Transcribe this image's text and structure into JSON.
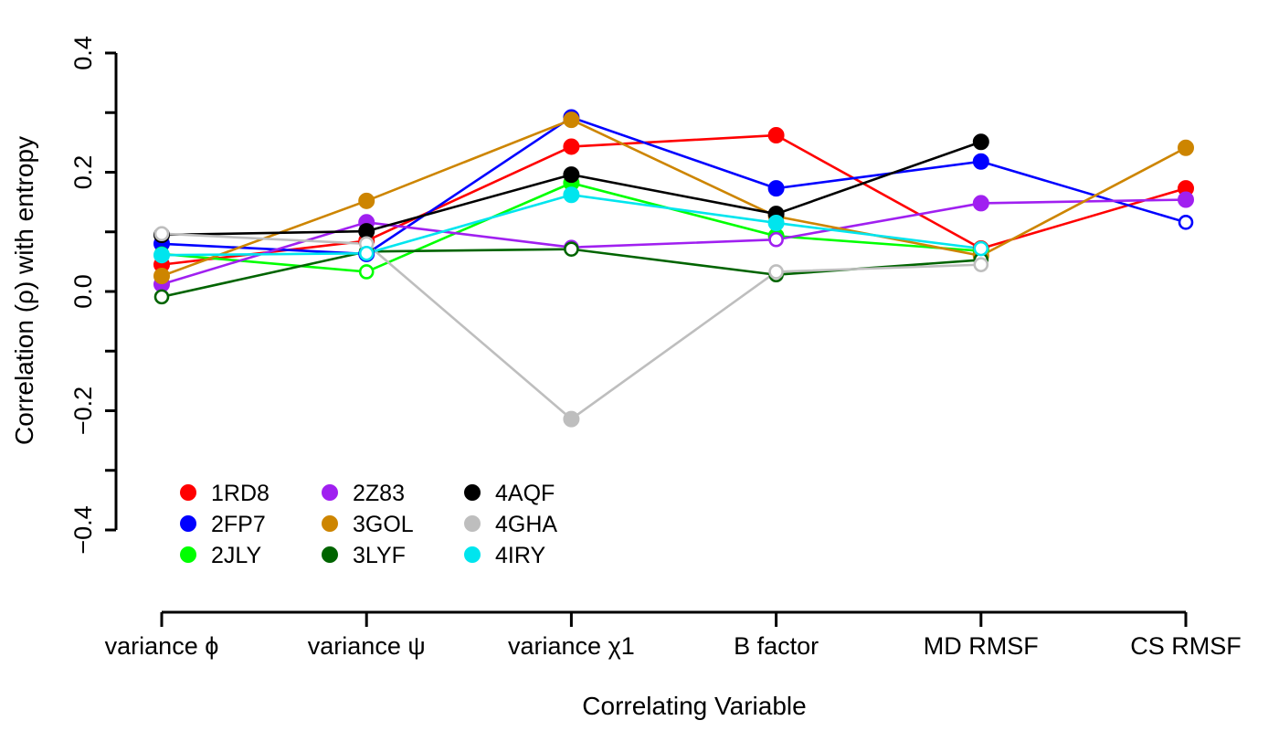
{
  "chart_data": {
    "type": "line",
    "xlabel": "Correlating Variable",
    "ylabel": "Correlation (ρ) with entropy",
    "categories": [
      "variance ϕ",
      "variance ψ",
      "variance χ1",
      "B factor",
      "MD RMSF",
      "CS RMSF"
    ],
    "ylim": [
      -0.4,
      0.4
    ],
    "yticks": [
      "−0.4",
      "−0.2",
      "0.0",
      "0.2",
      "0.4"
    ],
    "ytick_values": [
      -0.4,
      -0.2,
      0.0,
      0.2,
      0.4
    ],
    "legend_position": "bottom-left",
    "series": [
      {
        "name": "1RD8",
        "color": "#ff0000",
        "values": [
          0.045,
          0.085,
          0.243,
          0.262,
          0.072,
          0.173
        ],
        "filled": [
          true,
          true,
          true,
          true,
          true,
          true
        ]
      },
      {
        "name": "2FP7",
        "color": "#0000ff",
        "values": [
          0.08,
          0.063,
          0.292,
          0.173,
          0.218,
          0.116
        ],
        "filled": [
          true,
          true,
          true,
          true,
          true,
          false
        ]
      },
      {
        "name": "2JLY",
        "color": "#00ff00",
        "values": [
          0.063,
          0.033,
          0.182,
          0.093,
          0.068,
          null
        ],
        "filled": [
          false,
          false,
          true,
          true,
          true,
          true
        ]
      },
      {
        "name": "2Z83",
        "color": "#a020f0",
        "values": [
          0.012,
          0.116,
          0.074,
          0.087,
          0.148,
          0.154
        ],
        "filled": [
          true,
          true,
          false,
          false,
          true,
          true
        ]
      },
      {
        "name": "3GOL",
        "color": "#cd8500",
        "values": [
          0.026,
          0.152,
          0.288,
          0.126,
          0.06,
          0.241
        ],
        "filled": [
          true,
          true,
          true,
          true,
          true,
          true
        ]
      },
      {
        "name": "3LYF",
        "color": "#006400",
        "values": [
          -0.009,
          0.067,
          0.071,
          0.028,
          0.053,
          null
        ],
        "filled": [
          false,
          false,
          false,
          false,
          false,
          true
        ]
      },
      {
        "name": "4AQF",
        "color": "#000000",
        "values": [
          0.095,
          0.101,
          0.196,
          0.13,
          0.251,
          null
        ],
        "filled": [
          true,
          true,
          true,
          true,
          true,
          true
        ]
      },
      {
        "name": "4GHA",
        "color": "#bebebe",
        "values": [
          0.097,
          0.08,
          -0.214,
          0.033,
          0.045,
          null
        ],
        "filled": [
          false,
          false,
          true,
          false,
          false,
          true
        ]
      },
      {
        "name": "4IRY",
        "color": "#00e5ee",
        "values": [
          0.061,
          0.064,
          0.162,
          0.115,
          0.072,
          null
        ],
        "filled": [
          true,
          false,
          true,
          true,
          false,
          true
        ]
      }
    ]
  }
}
